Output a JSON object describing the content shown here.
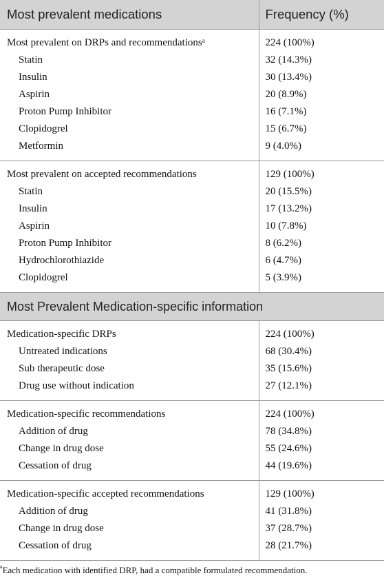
{
  "table": {
    "header": {
      "col1": "Most prevalent medications",
      "col2": "Frequency (%)"
    },
    "groups": [
      {
        "label": "Most prevalent on DRPs and recommendations",
        "label_sup": "a",
        "value": "224 (100%)",
        "items": [
          {
            "label": "Statin",
            "value": "32 (14.3%)"
          },
          {
            "label": "Insulin",
            "value": "30 (13.4%)"
          },
          {
            "label": "Aspirin",
            "value": "20 (8.9%)"
          },
          {
            "label": "Proton Pump Inhibitor",
            "value": "16 (7.1%)"
          },
          {
            "label": "Clopidogrel",
            "value": "15 (6.7%)"
          },
          {
            "label": "Metformin",
            "value": "9 (4.0%)"
          }
        ]
      },
      {
        "label": "Most prevalent on accepted recommendations",
        "value": "129 (100%)",
        "items": [
          {
            "label": "Statin",
            "value": "20 (15.5%)"
          },
          {
            "label": "Insulin",
            "value": "17 (13.2%)"
          },
          {
            "label": "Aspirin",
            "value": "10 (7.8%)"
          },
          {
            "label": "Proton Pump Inhibitor",
            "value": "8 (6.2%)"
          },
          {
            "label": "Hydrochlorothiazide",
            "value": "6 (4.7%)"
          },
          {
            "label": "Clopidogrel",
            "value": "5 (3.9%)"
          }
        ]
      }
    ],
    "section_title": "Most Prevalent Medication-specific information",
    "groups2": [
      {
        "label": "Medication-specific DRPs",
        "value": "224 (100%)",
        "items": [
          {
            "label": "Untreated indications",
            "value": "68 (30.4%)"
          },
          {
            "label": "Sub therapeutic dose",
            "value": "35 (15.6%)"
          },
          {
            "label": "Drug use without indication",
            "value": "27 (12.1%)"
          }
        ]
      },
      {
        "label": "Medication-specific recommendations",
        "value": "224 (100%)",
        "items": [
          {
            "label": "Addition of drug",
            "value": "78 (34.8%)"
          },
          {
            "label": "Change in drug dose",
            "value": "55 (24.6%)"
          },
          {
            "label": "Cessation of drug",
            "value": "44 (19.6%)"
          }
        ]
      },
      {
        "label": "Medication-specific accepted recommendations",
        "value": "129 (100%)",
        "items": [
          {
            "label": "Addition of drug",
            "value": "41 (31.8%)"
          },
          {
            "label": "Change in drug dose",
            "value": "37 (28.7%)"
          },
          {
            "label": "Cessation of drug",
            "value": "28 (21.7%)"
          }
        ]
      }
    ]
  },
  "footnote": {
    "marker": "a",
    "text": "Each medication with identified DRP, had a compatible formulated recommendation."
  }
}
